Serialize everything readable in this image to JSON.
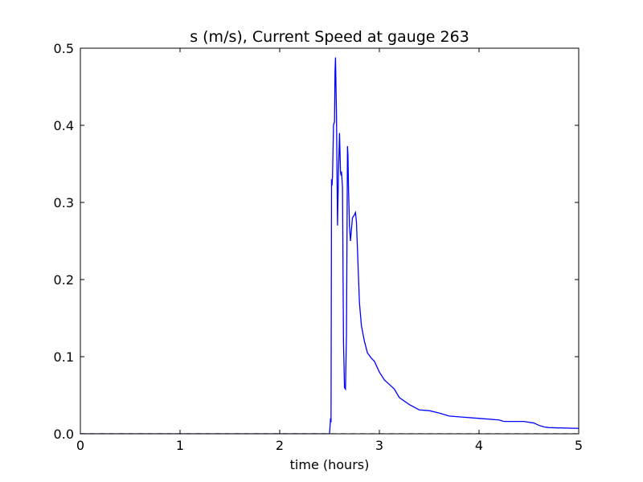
{
  "chart_data": {
    "type": "line",
    "title": "s (m/s), Current Speed at gauge 263",
    "xlabel": "time (hours)",
    "ylabel": "",
    "xlim": [
      0,
      5
    ],
    "ylim": [
      0,
      0.5
    ],
    "xticks": [
      "0",
      "1",
      "2",
      "3",
      "4",
      "5"
    ],
    "yticks": [
      "0.0",
      "0.1",
      "0.2",
      "0.3",
      "0.4",
      "0.5"
    ],
    "grid": false,
    "legend": "none",
    "series": [
      {
        "color": "#0000ff",
        "style": "solid",
        "x": [
          0,
          1,
          2,
          2.5,
          2.51,
          2.515,
          2.52,
          2.525,
          2.53,
          2.54,
          2.55,
          2.555,
          2.56,
          2.57,
          2.58,
          2.59,
          2.6,
          2.605,
          2.61,
          2.615,
          2.62,
          2.63,
          2.64,
          2.65,
          2.66,
          2.67,
          2.675,
          2.68,
          2.685,
          2.69,
          2.7,
          2.71,
          2.72,
          2.73,
          2.74,
          2.75,
          2.76,
          2.77,
          2.78,
          2.8,
          2.82,
          2.85,
          2.88,
          2.92,
          2.95,
          3.0,
          3.05,
          3.1,
          3.15,
          3.2,
          3.3,
          3.4,
          3.5,
          3.6,
          3.7,
          3.8,
          4.0,
          4.2,
          4.25,
          4.3,
          4.4,
          4.45,
          4.5,
          4.55,
          4.6,
          4.65,
          4.7,
          5.0
        ],
        "y": [
          0,
          0,
          0,
          0,
          0.02,
          0.015,
          0.33,
          0.322,
          0.335,
          0.4,
          0.405,
          0.47,
          0.488,
          0.41,
          0.27,
          0.34,
          0.39,
          0.365,
          0.34,
          0.335,
          0.34,
          0.32,
          0.12,
          0.06,
          0.058,
          0.13,
          0.25,
          0.373,
          0.36,
          0.32,
          0.27,
          0.25,
          0.265,
          0.28,
          0.282,
          0.284,
          0.287,
          0.275,
          0.24,
          0.17,
          0.14,
          0.12,
          0.105,
          0.098,
          0.094,
          0.08,
          0.07,
          0.064,
          0.058,
          0.047,
          0.038,
          0.031,
          0.03,
          0.027,
          0.023,
          0.022,
          0.02,
          0.018,
          0.016,
          0.016,
          0.016,
          0.016,
          0.015,
          0.014,
          0.011,
          0.009,
          0.008,
          0.007
        ]
      },
      {
        "color": "#000000",
        "style": "dashed",
        "x": [
          0,
          5
        ],
        "y": [
          0,
          0
        ]
      }
    ]
  }
}
